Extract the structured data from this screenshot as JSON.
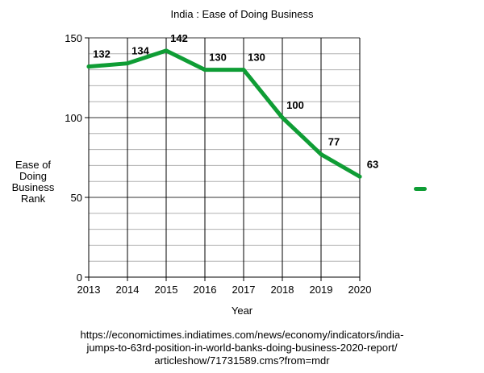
{
  "colors": {
    "series": "#0f9d35",
    "grid": "#b0b0b0",
    "axis": "#000000"
  },
  "chart_data": {
    "type": "line",
    "title": "India : Ease of Doing Business",
    "xlabel": "Year",
    "ylabel_lines": [
      "Ease of",
      "Doing",
      "Business",
      "Rank"
    ],
    "x": [
      2013,
      2014,
      2015,
      2016,
      2017,
      2018,
      2019,
      2020
    ],
    "series": [
      {
        "values": [
          132,
          134,
          142,
          130,
          130,
          100,
          77,
          63
        ]
      }
    ],
    "data_labels": [
      "132",
      "134",
      "142",
      "130",
      "130",
      "100",
      "77",
      "63"
    ],
    "ylim": [
      0,
      150
    ],
    "yticks": [
      "0",
      "50",
      "100",
      "150"
    ],
    "xticks": [
      "2013",
      "2014",
      "2015",
      "2016",
      "2017",
      "2018",
      "2019",
      "2020"
    ],
    "grid": true,
    "legend": "right"
  },
  "source_lines": [
    "https://economictimes.indiatimes.com/news/economy/indicators/india-",
    "jumps-to-63rd-position-in-world-banks-doing-business-2020-report/",
    "articleshow/71731589.cms?from=mdr"
  ]
}
